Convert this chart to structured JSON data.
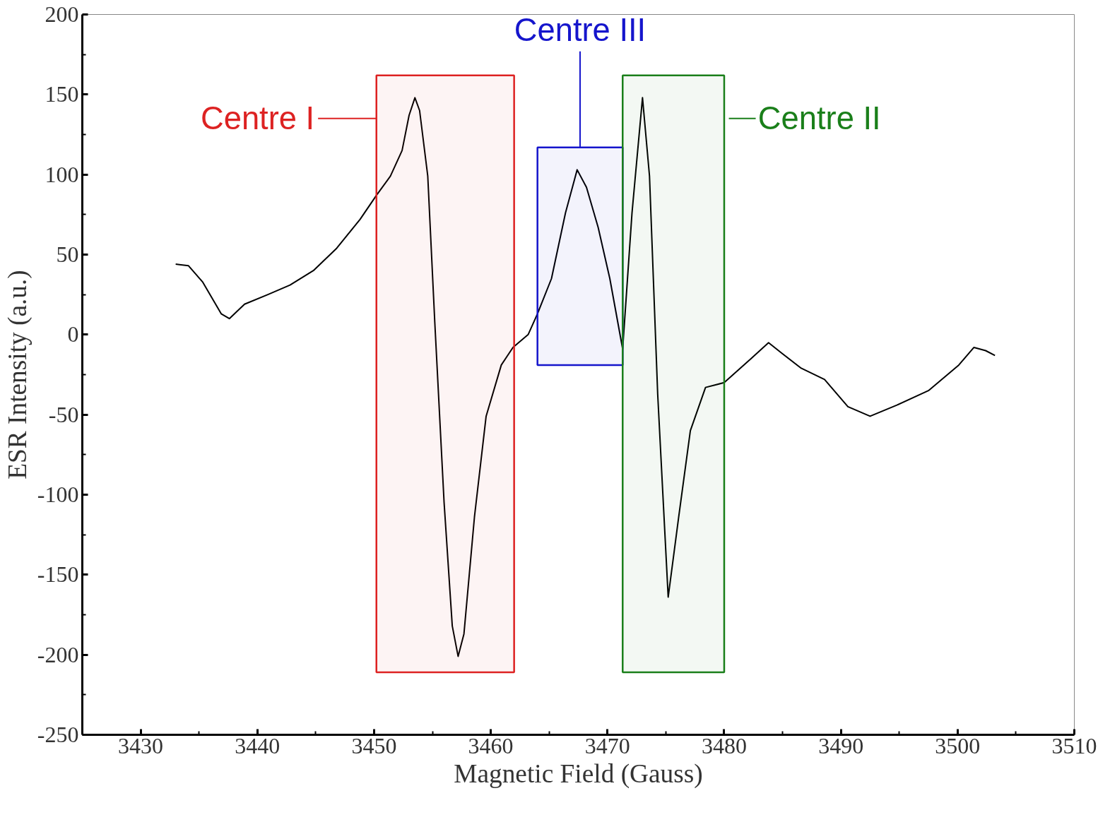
{
  "chart_data": {
    "type": "line",
    "xlabel": "Magnetic Field (Gauss)",
    "ylabel": "ESR Intensity (a.u.)",
    "x": [
      3433.0,
      3434.1,
      3435.3,
      3436.9,
      3437.6,
      3438.9,
      3440.9,
      3442.8,
      3444.8,
      3446.8,
      3448.8,
      3450.2,
      3451.4,
      3452.4,
      3453.0,
      3453.5,
      3453.9,
      3454.6,
      3455.2,
      3456.0,
      3456.7,
      3457.2,
      3457.7,
      3458.6,
      3459.6,
      3460.9,
      3461.9,
      3463.2,
      3464.0,
      3465.2,
      3466.4,
      3467.4,
      3468.2,
      3469.2,
      3470.2,
      3471.3,
      3472.1,
      3473.0,
      3473.6,
      3474.3,
      3475.2,
      3476.1,
      3477.1,
      3478.4,
      3480.0,
      3482.0,
      3483.8,
      3485.0,
      3486.6,
      3488.6,
      3490.6,
      3492.5,
      3494.8,
      3497.5,
      3500.1,
      3501.4,
      3502.4,
      3503.2
    ],
    "series": [
      {
        "color": "#000000",
        "values": [
          44,
          43,
          33,
          13,
          10,
          19,
          25,
          31,
          40,
          54,
          72,
          87,
          99,
          115,
          137,
          148,
          140,
          99,
          8,
          -105,
          -182,
          -201,
          -187,
          -114,
          -51,
          -19,
          -8,
          0,
          13,
          35,
          76,
          103,
          92,
          67,
          35,
          -9,
          76,
          148,
          99,
          -37,
          -164,
          -114,
          -60,
          -33,
          -30,
          -17,
          -5,
          -12,
          -21,
          -28,
          -45,
          -51,
          -44,
          -35,
          -19,
          -8,
          -10,
          -13
        ]
      }
    ],
    "xlim": [
      3425,
      3510
    ],
    "xticks": [
      3430,
      3440,
      3450,
      3460,
      3470,
      3480,
      3490,
      3500,
      3510
    ],
    "ylim": [
      -250,
      200
    ],
    "yticks": [
      -250,
      -200,
      -150,
      -100,
      -50,
      0,
      50,
      100,
      150,
      200
    ],
    "bands": [
      {
        "axis": "x",
        "from": 3450.2,
        "to": 3462.0,
        "label": "Centre I",
        "color": "#dd2222"
      },
      {
        "axis": "x",
        "from": 3464.0,
        "to": 3471.3,
        "label": "Centre III",
        "color": "#1515cc"
      },
      {
        "axis": "x",
        "from": 3471.3,
        "to": 3480.0,
        "label": "Centre II",
        "color": "#1a7f1a"
      }
    ],
    "grid": false,
    "marker": "none",
    "line_style": "solid"
  }
}
